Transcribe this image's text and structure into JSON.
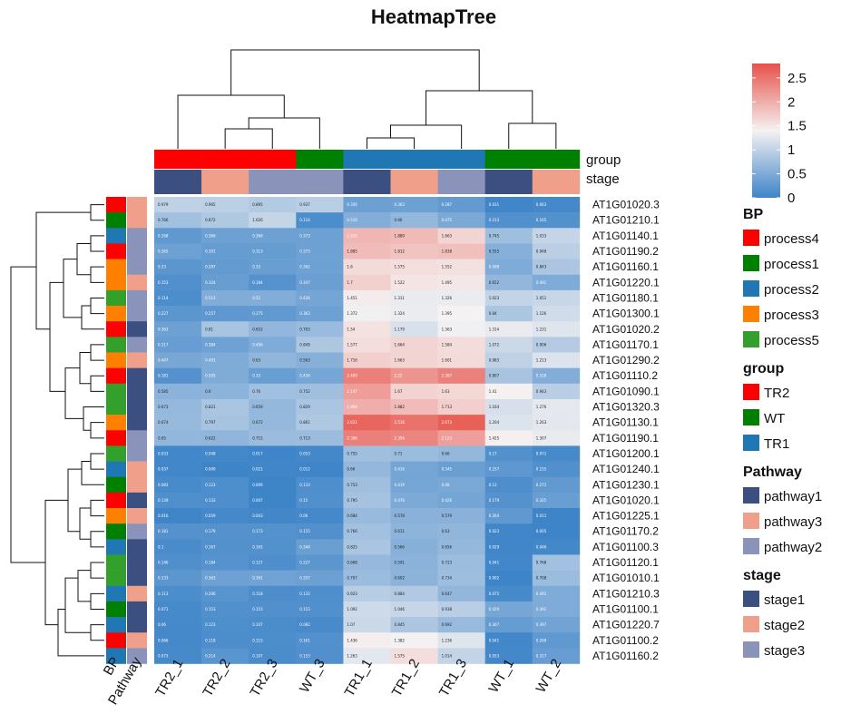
{
  "chart_data": {
    "type": "heatmap",
    "title": "HeatmapTree",
    "columns": [
      "TR2_1",
      "TR2_2",
      "TR2_3",
      "WT_3",
      "TR1_1",
      "TR1_2",
      "TR1_3",
      "WT_1",
      "WT_2"
    ],
    "col_group": [
      "TR2",
      "TR2",
      "TR2",
      "WT",
      "TR1",
      "TR1",
      "TR1",
      "WT",
      "WT"
    ],
    "col_stage": [
      "stage1",
      "stage2",
      "stage3",
      "stage3",
      "stage1",
      "stage2",
      "stage3",
      "stage1",
      "stage2"
    ],
    "rows": [
      {
        "gene": "AT1G01020.3",
        "BP": "process4",
        "Pathway": "pathway3",
        "values": [
          0.979,
          0.965,
          0.895,
          0.937,
          0.356,
          0.363,
          0.287,
          0.031,
          0.063
        ]
      },
      {
        "gene": "AT1G01210.1",
        "BP": "process1",
        "Pathway": "pathway3",
        "values": [
          0.766,
          0.872,
          1.026,
          0.116,
          0.519,
          0.66,
          0.475,
          0.153,
          0.165
        ]
      },
      {
        "gene": "AT1G01140.1",
        "BP": "process2",
        "Pathway": "pathway2",
        "values": [
          0.268,
          0.366,
          0.368,
          0.373,
          1.925,
          1.889,
          1.663,
          0.745,
          1.033
        ]
      },
      {
        "gene": "AT1G01190.2",
        "BP": "process4",
        "Pathway": "pathway2",
        "values": [
          0.365,
          0.301,
          0.313,
          0.373,
          1.885,
          1.812,
          1.838,
          0.555,
          0.948
        ]
      },
      {
        "gene": "AT1G01160.1",
        "BP": "process3",
        "Pathway": "pathway2",
        "values": [
          0.23,
          0.287,
          0.33,
          0.362,
          1.6,
          1.575,
          1.552,
          0.498,
          0.843
        ]
      },
      {
        "gene": "AT1G01220.1",
        "BP": "process3",
        "Pathway": "pathway3",
        "values": [
          0.153,
          0.324,
          0.184,
          0.347,
          1.7,
          1.522,
          1.495,
          0.652,
          0.491
        ]
      },
      {
        "gene": "AT1G01180.1",
        "BP": "process5",
        "Pathway": "pathway2",
        "values": [
          0.114,
          0.513,
          0.52,
          0.426,
          1.451,
          1.311,
          1.326,
          1.023,
          1.051
        ]
      },
      {
        "gene": "AT1G01300.1",
        "BP": "process3",
        "Pathway": "pathway2",
        "values": [
          0.227,
          0.257,
          0.275,
          0.363,
          1.372,
          1.324,
          1.395,
          0.84,
          1.126
        ]
      },
      {
        "gene": "AT1G01020.2",
        "BP": "process4",
        "Pathway": "pathway1",
        "values": [
          0.363,
          0.81,
          0.652,
          0.703,
          1.54,
          1.179,
          1.363,
          1.314,
          1.231
        ]
      },
      {
        "gene": "AT1G01170.1",
        "BP": "process5",
        "Pathway": "pathway2",
        "values": [
          0.317,
          0.384,
          0.496,
          0.849,
          1.577,
          1.664,
          1.584,
          1.072,
          0.906
        ]
      },
      {
        "gene": "AT1G01290.2",
        "BP": "process3",
        "Pathway": "pathway3",
        "values": [
          0.447,
          0.491,
          0.63,
          0.563,
          1.716,
          1.663,
          1.601,
          0.983,
          1.213
        ]
      },
      {
        "gene": "AT1G01110.2",
        "BP": "process4",
        "Pathway": "pathway1",
        "values": [
          0.181,
          0.505,
          0.33,
          0.434,
          2.409,
          2.22,
          2.387,
          0.807,
          0.528
        ]
      },
      {
        "gene": "AT1G01090.1",
        "BP": "process5",
        "Pathway": "pathway1",
        "values": [
          0.585,
          0.6,
          0.76,
          0.752,
          2.147,
          1.67,
          1.63,
          1.41,
          0.943
        ]
      },
      {
        "gene": "AT1G01320.3",
        "BP": "process5",
        "Pathway": "pathway1",
        "values": [
          0.673,
          0.821,
          0.659,
          0.829,
          1.994,
          1.882,
          1.713,
          1.164,
          1.276
        ]
      },
      {
        "gene": "AT1G01130.1",
        "BP": "process3",
        "Pathway": "pathway1",
        "values": [
          0.674,
          0.797,
          0.672,
          0.861,
          2.621,
          2.516,
          2.673,
          1.204,
          1.263
        ]
      },
      {
        "gene": "AT1G01190.1",
        "BP": "process4",
        "Pathway": "pathway2",
        "values": [
          0.65,
          0.622,
          0.715,
          0.713,
          2.396,
          2.354,
          2.123,
          1.425,
          1.307
        ]
      },
      {
        "gene": "AT1G01200.1",
        "BP": "process5",
        "Pathway": "pathway2",
        "values": [
          0.033,
          0.048,
          0.017,
          0.053,
          0.755,
          0.71,
          0.66,
          0.17,
          0.071
        ]
      },
      {
        "gene": "AT1G01240.1",
        "BP": "process2",
        "Pathway": "pathway3",
        "values": [
          0.037,
          0.009,
          0.021,
          0.012,
          0.66,
          0.416,
          0.345,
          0.257,
          0.155
        ]
      },
      {
        "gene": "AT1G01230.1",
        "BP": "process1",
        "Pathway": "pathway3",
        "values": [
          0.083,
          0.123,
          0.009,
          0.133,
          0.753,
          0.419,
          0.46,
          0.13,
          0.271
        ]
      },
      {
        "gene": "AT1G01020.1",
        "BP": "process4",
        "Pathway": "pathway1",
        "values": [
          0.139,
          0.133,
          0.007,
          0.15,
          0.795,
          0.476,
          0.426,
          0.179,
          0.325
        ]
      },
      {
        "gene": "AT1G01225.1",
        "BP": "process3",
        "Pathway": "pathway3",
        "values": [
          0.016,
          0.059,
          0.043,
          0.06,
          0.684,
          0.578,
          0.579,
          0.264,
          0.011
        ]
      },
      {
        "gene": "AT1G01170.2",
        "BP": "process1",
        "Pathway": "pathway2",
        "values": [
          0.181,
          0.179,
          0.173,
          0.155,
          0.766,
          0.611,
          0.63,
          0.023,
          0.005
        ]
      },
      {
        "gene": "AT1G01100.3",
        "BP": "process2",
        "Pathway": "pathway1",
        "values": [
          0.1,
          0.167,
          0.165,
          0.344,
          0.825,
          0.566,
          0.656,
          0.029,
          0.046
        ]
      },
      {
        "gene": "AT1G01120.1",
        "BP": "process5",
        "Pathway": "pathway1",
        "values": [
          0.146,
          0.184,
          0.127,
          0.227,
          0.668,
          0.591,
          0.723,
          0.041,
          0.768
        ]
      },
      {
        "gene": "AT1G01010.1",
        "BP": "process5",
        "Pathway": "pathway1",
        "values": [
          0.233,
          0.363,
          0.391,
          0.357,
          0.707,
          0.602,
          0.734,
          0.002,
          0.708
        ]
      },
      {
        "gene": "AT1G01210.3",
        "BP": "process2",
        "Pathway": "pathway3",
        "values": [
          0.113,
          0.206,
          0.118,
          0.132,
          0.923,
          0.884,
          0.647,
          0.075,
          0.491
        ]
      },
      {
        "gene": "AT1G01100.1",
        "BP": "process1",
        "Pathway": "pathway1",
        "values": [
          0.071,
          0.153,
          0.153,
          0.153,
          1.092,
          1.046,
          0.938,
          0.429,
          0.491
        ]
      },
      {
        "gene": "AT1G01220.7",
        "BP": "process2",
        "Pathway": "pathway1",
        "values": [
          0.06,
          0.123,
          0.107,
          0.082,
          1.07,
          0.845,
          0.692,
          0.307,
          0.397
        ]
      },
      {
        "gene": "AT1G01100.2",
        "BP": "process4",
        "Pathway": "pathway3",
        "values": [
          0.066,
          0.118,
          0.115,
          0.161,
          1.436,
          1.382,
          1.236,
          0.041,
          0.269
        ]
      },
      {
        "gene": "AT1G01160.2",
        "BP": "process2",
        "Pathway": "pathway2",
        "values": [
          0.073,
          0.214,
          0.107,
          0.153,
          1.263,
          1.575,
          1.014,
          0.053,
          0.317
        ]
      }
    ],
    "colorbar": {
      "min": 0,
      "max": 2.8,
      "ticks": [
        0,
        0.5,
        1,
        1.5,
        2,
        2.5
      ],
      "colors": [
        "#3d84c8",
        "#f5f2f2",
        "#e7524a"
      ]
    },
    "legends": {
      "BP": {
        "title": "BP",
        "items": [
          {
            "label": "process4",
            "color": "#ff0000"
          },
          {
            "label": "process1",
            "color": "#008000"
          },
          {
            "label": "process2",
            "color": "#1f78b4"
          },
          {
            "label": "process3",
            "color": "#ff7f00"
          },
          {
            "label": "process5",
            "color": "#33a02c"
          }
        ]
      },
      "group": {
        "title": "group",
        "items": [
          {
            "label": "TR2",
            "color": "#ff0000"
          },
          {
            "label": "WT",
            "color": "#008000"
          },
          {
            "label": "TR1",
            "color": "#1f78b4"
          }
        ]
      },
      "Pathway": {
        "title": "Pathway",
        "items": [
          {
            "label": "pathway1",
            "color": "#3b4f80"
          },
          {
            "label": "pathway3",
            "color": "#f0a08a"
          },
          {
            "label": "pathway2",
            "color": "#8a94bb"
          }
        ]
      },
      "stage": {
        "title": "stage",
        "items": [
          {
            "label": "stage1",
            "color": "#3b4f80"
          },
          {
            "label": "stage2",
            "color": "#f0a08a"
          },
          {
            "label": "stage3",
            "color": "#8a94bb"
          }
        ]
      }
    },
    "annotation_labels": {
      "group": "group",
      "stage": "stage",
      "BP": "BP",
      "Pathway": "Pathway"
    }
  }
}
